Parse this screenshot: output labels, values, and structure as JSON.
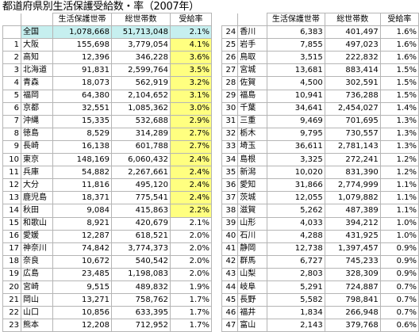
{
  "title": "都道府県別生活保護受給数・率（2007年）",
  "headers": {
    "households": "生活保護世帯",
    "total_households": "総世帯数",
    "rate": "受給率"
  },
  "highlight_color": "#ffff80",
  "total_color": "#c6efef",
  "total_row": {
    "pref": "全国",
    "households": "1,078,668",
    "total": "51,713,048",
    "rate": "2.1%"
  },
  "left_rows": [
    {
      "idx": "1",
      "pref": "大阪",
      "households": "155,698",
      "total": "3,779,054",
      "rate": "4.1%",
      "hl": true
    },
    {
      "idx": "2",
      "pref": "高知",
      "households": "12,396",
      "total": "346,228",
      "rate": "3.6%",
      "hl": true
    },
    {
      "idx": "3",
      "pref": "北海道",
      "households": "91,831",
      "total": "2,599,764",
      "rate": "3.5%",
      "hl": true
    },
    {
      "idx": "4",
      "pref": "青森",
      "households": "18,073",
      "total": "562,919",
      "rate": "3.2%",
      "hl": true
    },
    {
      "idx": "5",
      "pref": "福岡",
      "households": "64,380",
      "total": "2,104,652",
      "rate": "3.1%",
      "hl": true
    },
    {
      "idx": "6",
      "pref": "京都",
      "households": "32,551",
      "total": "1,085,362",
      "rate": "3.0%",
      "hl": true
    },
    {
      "idx": "7",
      "pref": "沖縄",
      "households": "15,335",
      "total": "532,688",
      "rate": "2.9%",
      "hl": true
    },
    {
      "idx": "8",
      "pref": "徳島",
      "households": "8,529",
      "total": "314,289",
      "rate": "2.7%",
      "hl": true
    },
    {
      "idx": "9",
      "pref": "長崎",
      "households": "16,138",
      "total": "601,788",
      "rate": "2.7%",
      "hl": true
    },
    {
      "idx": "10",
      "pref": "東京",
      "households": "148,169",
      "total": "6,060,432",
      "rate": "2.4%",
      "hl": true
    },
    {
      "idx": "11",
      "pref": "兵庫",
      "households": "54,882",
      "total": "2,267,661",
      "rate": "2.4%",
      "hl": true
    },
    {
      "idx": "12",
      "pref": "大分",
      "households": "11,816",
      "total": "495,120",
      "rate": "2.4%",
      "hl": true
    },
    {
      "idx": "13",
      "pref": "鹿児島",
      "households": "18,371",
      "total": "775,541",
      "rate": "2.4%",
      "hl": true
    },
    {
      "idx": "14",
      "pref": "秋田",
      "households": "9,084",
      "total": "415,863",
      "rate": "2.2%",
      "hl": true
    },
    {
      "idx": "15",
      "pref": "和歌山",
      "households": "8,921",
      "total": "420,679",
      "rate": "2.1%",
      "hl": false
    },
    {
      "idx": "16",
      "pref": "愛媛",
      "households": "12,287",
      "total": "618,521",
      "rate": "2.0%",
      "hl": false
    },
    {
      "idx": "17",
      "pref": "神奈川",
      "households": "74,842",
      "total": "3,774,373",
      "rate": "2.0%",
      "hl": false
    },
    {
      "idx": "18",
      "pref": "奈良",
      "households": "10,672",
      "total": "540,542",
      "rate": "2.0%",
      "hl": false
    },
    {
      "idx": "19",
      "pref": "広島",
      "households": "23,485",
      "total": "1,198,083",
      "rate": "2.0%",
      "hl": false
    },
    {
      "idx": "20",
      "pref": "宮崎",
      "households": "9,515",
      "total": "489,832",
      "rate": "1.9%",
      "hl": false
    },
    {
      "idx": "21",
      "pref": "岡山",
      "households": "13,271",
      "total": "758,762",
      "rate": "1.7%",
      "hl": false
    },
    {
      "idx": "22",
      "pref": "山口",
      "households": "10,856",
      "total": "633,395",
      "rate": "1.7%",
      "hl": false
    },
    {
      "idx": "23",
      "pref": "熊本",
      "households": "12,208",
      "total": "712,952",
      "rate": "1.7%",
      "hl": false
    }
  ],
  "right_rows": [
    {
      "idx": "24",
      "pref": "香川",
      "households": "6,383",
      "total": "401,497",
      "rate": "1.6%"
    },
    {
      "idx": "25",
      "pref": "岩手",
      "households": "7,855",
      "total": "497,023",
      "rate": "1.6%"
    },
    {
      "idx": "26",
      "pref": "鳥取",
      "households": "3,515",
      "total": "222,832",
      "rate": "1.6%"
    },
    {
      "idx": "27",
      "pref": "宮城",
      "households": "13,681",
      "total": "883,414",
      "rate": "1.5%"
    },
    {
      "idx": "28",
      "pref": "佐賀",
      "households": "4,500",
      "total": "302,591",
      "rate": "1.5%"
    },
    {
      "idx": "29",
      "pref": "福島",
      "households": "10,941",
      "total": "736,288",
      "rate": "1.5%"
    },
    {
      "idx": "30",
      "pref": "千葉",
      "households": "34,641",
      "total": "2,454,027",
      "rate": "1.4%"
    },
    {
      "idx": "31",
      "pref": "三重",
      "households": "9,469",
      "total": "701,695",
      "rate": "1.3%"
    },
    {
      "idx": "32",
      "pref": "栃木",
      "households": "9,795",
      "total": "730,557",
      "rate": "1.3%"
    },
    {
      "idx": "33",
      "pref": "埼玉",
      "households": "36,611",
      "total": "2,781,143",
      "rate": "1.3%"
    },
    {
      "idx": "34",
      "pref": "島根",
      "households": "3,325",
      "total": "272,241",
      "rate": "1.2%"
    },
    {
      "idx": "35",
      "pref": "新潟",
      "households": "10,020",
      "total": "831,390",
      "rate": "1.2%"
    },
    {
      "idx": "36",
      "pref": "愛知",
      "households": "31,866",
      "total": "2,774,999",
      "rate": "1.1%"
    },
    {
      "idx": "37",
      "pref": "茨城",
      "households": "12,055",
      "total": "1,079,882",
      "rate": "1.1%"
    },
    {
      "idx": "38",
      "pref": "滋賀",
      "households": "5,262",
      "total": "487,389",
      "rate": "1.1%"
    },
    {
      "idx": "39",
      "pref": "山形",
      "households": "4,033",
      "total": "394,212",
      "rate": "1.0%"
    },
    {
      "idx": "40",
      "pref": "石川",
      "households": "4,288",
      "total": "431,925",
      "rate": "1.0%"
    },
    {
      "idx": "41",
      "pref": "静岡",
      "households": "12,738",
      "total": "1,397,457",
      "rate": "0.9%"
    },
    {
      "idx": "42",
      "pref": "群馬",
      "households": "6,727",
      "total": "745,233",
      "rate": "0.9%"
    },
    {
      "idx": "43",
      "pref": "山梨",
      "households": "2,803",
      "total": "328,309",
      "rate": "0.9%"
    },
    {
      "idx": "44",
      "pref": "岐阜",
      "households": "5,291",
      "total": "724,887",
      "rate": "0.7%"
    },
    {
      "idx": "45",
      "pref": "長野",
      "households": "5,582",
      "total": "798,841",
      "rate": "0.7%"
    },
    {
      "idx": "46",
      "pref": "福井",
      "households": "1,834",
      "total": "266,948",
      "rate": "0.7%"
    },
    {
      "idx": "47",
      "pref": "富山",
      "households": "2,143",
      "total": "379,768",
      "rate": "0.6%"
    }
  ]
}
